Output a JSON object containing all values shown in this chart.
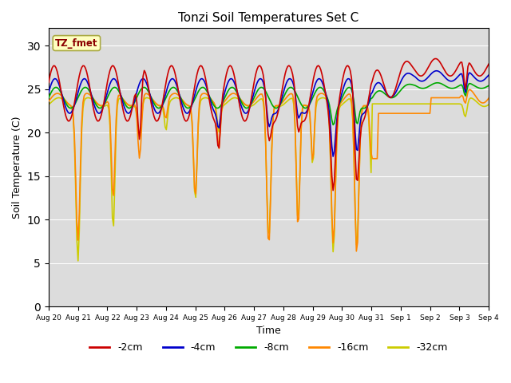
{
  "title": "Tonzi Soil Temperatures Set C",
  "xlabel": "Time",
  "ylabel": "Soil Temperature (C)",
  "ylim": [
    0,
    32
  ],
  "yticks": [
    0,
    5,
    10,
    15,
    20,
    25,
    30
  ],
  "annotation": "TZ_fmet",
  "annotation_color": "#8B0000",
  "annotation_bg": "#FFFFC0",
  "annotation_border": "#AAAA44",
  "series_colors": {
    "-2cm": "#CC0000",
    "-4cm": "#0000CC",
    "-8cm": "#00AA00",
    "-16cm": "#FF8800",
    "-32cm": "#CCCC00"
  },
  "series_labels": [
    "-2cm",
    "-4cm",
    "-8cm",
    "-16cm",
    "-32cm"
  ],
  "axes_bg": "#DCDCDC",
  "fig_bg": "#FFFFFF",
  "grid_color": "#FFFFFF",
  "n_days": 15,
  "pts_per_day": 24,
  "day0_label": "Aug 20"
}
